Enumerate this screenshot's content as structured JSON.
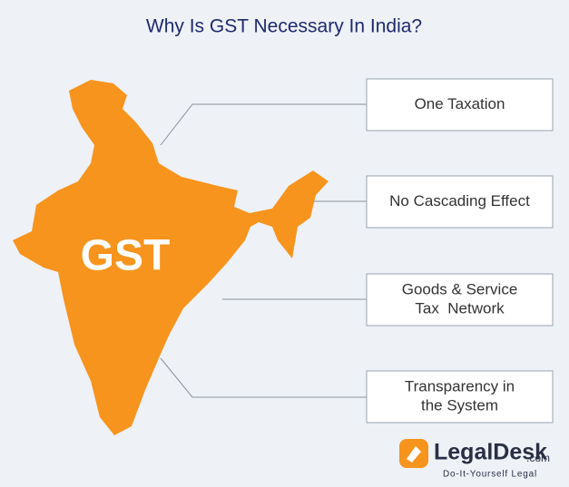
{
  "title": "Why Is GST Necessary In India?",
  "map_label": "GST",
  "boxes": [
    {
      "lines": [
        "One Taxation"
      ]
    },
    {
      "lines": [
        "No Cascading Effect"
      ]
    },
    {
      "lines": [
        "Goods & Service",
        "Tax  Network"
      ]
    },
    {
      "lines": [
        "Transparency in",
        "the System"
      ]
    }
  ],
  "logo": {
    "name": "LegalDesk",
    "suffix": ".com",
    "tagline": "Do-It-Yourself Legal"
  }
}
